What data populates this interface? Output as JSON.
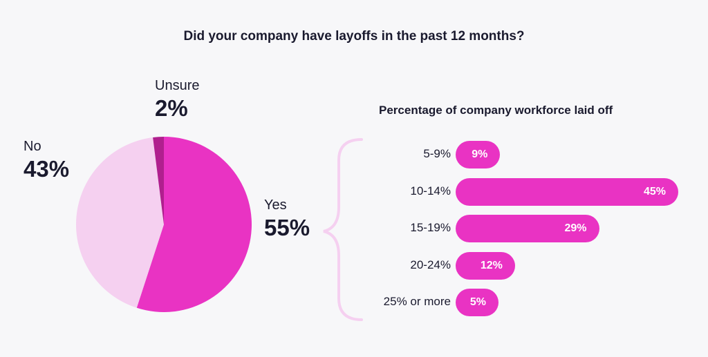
{
  "title": "Did your company have layoffs in the past 12 months?",
  "chart_data": [
    {
      "type": "pie",
      "slices": [
        {
          "label": "Yes",
          "value": 55,
          "display": "55%",
          "color": "#e933c3"
        },
        {
          "label": "No",
          "value": 43,
          "display": "43%",
          "color": "#f5d0f0"
        },
        {
          "label": "Unsure",
          "value": 2,
          "display": "2%",
          "color": "#b01f8e"
        }
      ]
    },
    {
      "type": "bar",
      "orientation": "horizontal",
      "title": "Percentage of company workforce laid off",
      "categories": [
        "5-9%",
        "10-14%",
        "15-19%",
        "20-24%",
        "25% or more"
      ],
      "values": [
        9,
        45,
        29,
        12,
        5
      ],
      "value_labels": [
        "9%",
        "45%",
        "29%",
        "12%",
        "5%"
      ],
      "color": "#e933c3"
    }
  ],
  "colors": {
    "accent": "#e933c3",
    "light": "#f5d0f0",
    "dark": "#b01f8e",
    "brace": "#f5d0f0"
  }
}
